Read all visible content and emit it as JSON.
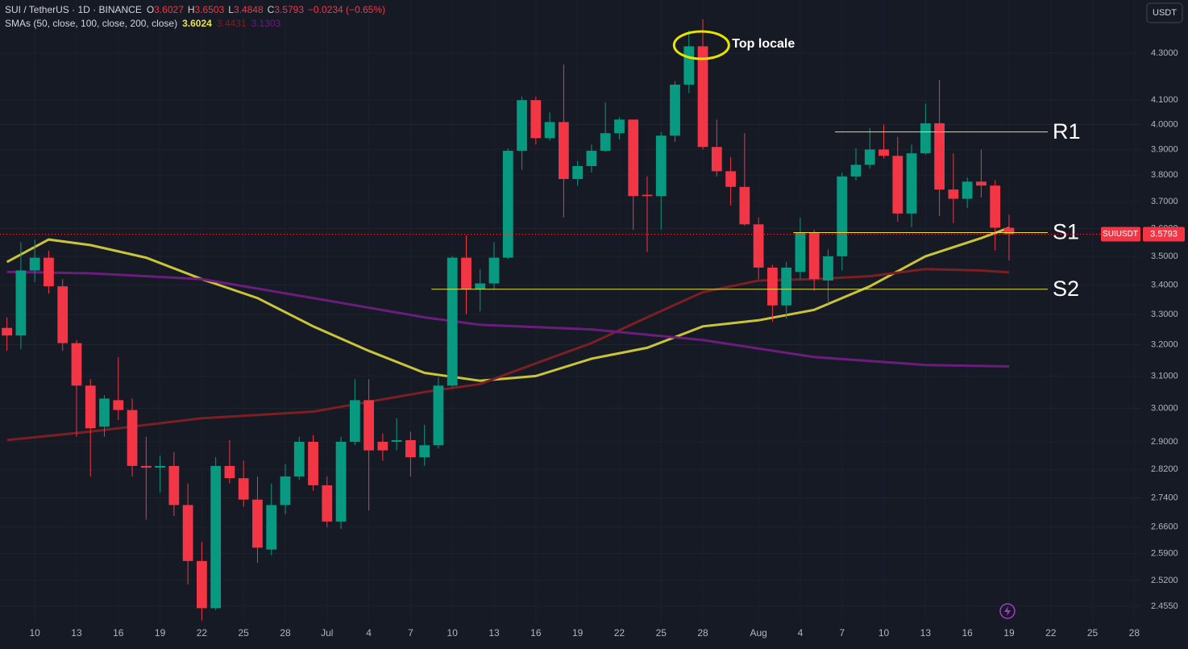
{
  "header": {
    "symbol": "SUI / TetherUS · 1D · BINANCE",
    "ohlc_letters": [
      "O",
      "H",
      "L",
      "C"
    ],
    "change_text": "−0.0234 (−0.65%)",
    "currency": "USDT",
    "price_tag": "SUIUSDT"
  },
  "chart_data": {
    "type": "candlestick",
    "log": true,
    "grid": true,
    "up_color": "#089981",
    "down_color": "#f23645",
    "categories": [
      "Jun 8",
      "Jun 9",
      "Jun 10",
      "Jun 11",
      "Jun 12",
      "Jun 13",
      "Jun 14",
      "Jun 15",
      "Jun 16",
      "Jun 17",
      "Jun 18",
      "Jun 19",
      "Jun 20",
      "Jun 21",
      "Jun 22",
      "Jun 23",
      "Jun 24",
      "Jun 25",
      "Jun 26",
      "Jun 27",
      "Jun 28",
      "Jun 29",
      "Jun 30",
      "Jul 1",
      "Jul 2",
      "Jul 3",
      "Jul 4",
      "Jul 5",
      "Jul 6",
      "Jul 7",
      "Jul 8",
      "Jul 9",
      "Jul 10",
      "Jul 11",
      "Jul 12",
      "Jul 13",
      "Jul 14",
      "Jul 15",
      "Jul 16",
      "Jul 17",
      "Jul 18",
      "Jul 19",
      "Jul 20",
      "Jul 21",
      "Jul 22",
      "Jul 23",
      "Jul 24",
      "Jul 25",
      "Jul 26",
      "Jul 27",
      "Jul 28",
      "Jul 29",
      "Jul 30",
      "Jul 31",
      "Aug 1",
      "Aug 2",
      "Aug 3",
      "Aug 4",
      "Aug 5",
      "Aug 6",
      "Aug 7",
      "Aug 8",
      "Aug 9",
      "Aug 10",
      "Aug 11",
      "Aug 12",
      "Aug 13",
      "Aug 14",
      "Aug 15",
      "Aug 16",
      "Aug 17",
      "Aug 18",
      "Aug 19",
      "Aug 20",
      "Aug 21",
      "Aug 22",
      "Aug 23",
      "Aug 24",
      "Aug 25",
      "Aug 26",
      "Aug 27",
      "Aug 28"
    ],
    "open": [
      3.255,
      3.23,
      3.45,
      3.495,
      3.395,
      3.205,
      3.07,
      2.945,
      3.025,
      2.995,
      2.83,
      2.825,
      2.83,
      2.72,
      2.57,
      2.45,
      2.83,
      2.795,
      2.735,
      2.6,
      2.72,
      2.8,
      2.9,
      2.775,
      2.675,
      2.9,
      3.025,
      2.9,
      2.9,
      2.905,
      2.855,
      2.89,
      3.07,
      3.495,
      3.385,
      3.405,
      3.495,
      3.895,
      4.1,
      3.945,
      4.01,
      3.785,
      3.835,
      3.895,
      3.965,
      4.02,
      3.725,
      3.72,
      3.955,
      4.165,
      4.33,
      3.91,
      3.815,
      3.755,
      3.615,
      3.46,
      3.33,
      3.445,
      3.585,
      3.415,
      3.5,
      3.795,
      3.84,
      3.9,
      3.875,
      3.655,
      3.885,
      4.005,
      3.745,
      3.71,
      3.775,
      3.76,
      3.6027,
      null,
      null,
      null,
      null,
      null,
      null,
      null,
      null,
      null
    ],
    "high": [
      3.29,
      3.55,
      3.56,
      3.52,
      3.42,
      3.215,
      3.09,
      3.04,
      3.16,
      3.03,
      2.915,
      2.86,
      2.87,
      2.78,
      2.62,
      2.855,
      2.905,
      2.845,
      2.8,
      2.78,
      2.835,
      2.915,
      2.92,
      2.8,
      2.915,
      3.09,
      3.09,
      2.925,
      2.97,
      2.93,
      2.95,
      3.095,
      3.5,
      3.575,
      3.455,
      3.55,
      3.905,
      4.115,
      4.115,
      4.05,
      4.25,
      3.855,
      3.92,
      4.09,
      4.03,
      4.02,
      3.795,
      3.97,
      4.18,
      4.4,
      4.45,
      4.02,
      3.87,
      3.965,
      3.64,
      3.47,
      3.48,
      3.64,
      3.595,
      3.525,
      3.81,
      3.905,
      3.985,
      4.0,
      3.95,
      3.92,
      4.085,
      4.185,
      3.885,
      3.79,
      3.9,
      3.78,
      3.6503,
      null,
      null,
      null,
      null,
      null,
      null,
      null,
      null,
      null
    ],
    "low": [
      3.18,
      3.185,
      3.41,
      3.37,
      3.18,
      2.915,
      2.8,
      2.915,
      2.965,
      2.8,
      2.68,
      2.755,
      2.69,
      2.51,
      2.42,
      2.445,
      2.78,
      2.715,
      2.565,
      2.585,
      2.695,
      2.79,
      2.76,
      2.66,
      2.655,
      2.89,
      2.705,
      2.845,
      2.875,
      2.8,
      2.83,
      2.88,
      3.065,
      3.3,
      3.31,
      3.385,
      3.49,
      3.82,
      3.92,
      3.935,
      3.64,
      3.76,
      3.81,
      3.89,
      3.94,
      3.595,
      3.515,
      3.595,
      3.93,
      4.13,
      3.9,
      3.795,
      3.685,
      3.61,
      3.42,
      3.275,
      3.285,
      3.42,
      3.38,
      3.335,
      3.45,
      3.78,
      3.825,
      3.865,
      3.625,
      3.605,
      3.88,
      3.645,
      3.62,
      3.675,
      3.715,
      3.52,
      3.4848,
      null,
      null,
      null,
      null,
      null,
      null,
      null,
      null,
      null
    ],
    "close": [
      3.23,
      3.45,
      3.495,
      3.395,
      3.205,
      3.07,
      2.94,
      3.03,
      2.995,
      2.83,
      2.825,
      2.83,
      2.72,
      2.57,
      2.45,
      2.83,
      2.795,
      2.735,
      2.605,
      2.72,
      2.8,
      2.9,
      2.775,
      2.675,
      2.9,
      3.025,
      2.875,
      2.875,
      2.905,
      2.855,
      2.89,
      3.07,
      3.495,
      3.385,
      3.405,
      3.495,
      3.895,
      4.1,
      3.945,
      4.01,
      3.785,
      3.835,
      3.895,
      3.965,
      4.02,
      3.72,
      3.72,
      3.955,
      4.165,
      4.33,
      3.91,
      3.815,
      3.755,
      3.615,
      3.46,
      3.33,
      3.46,
      3.585,
      3.42,
      3.5,
      3.795,
      3.84,
      3.9,
      3.875,
      3.655,
      3.885,
      4.005,
      3.745,
      3.71,
      3.775,
      3.76,
      3.6027,
      3.5793,
      null,
      null,
      null,
      null,
      null,
      null,
      null,
      null,
      null
    ],
    "indicator_title": "SMAs (50, close, 100, close, 200, close)",
    "series": [
      {
        "color": "#c9c43a",
        "x": [
          "Jun 8",
          "Jun 11",
          "Jun 14",
          "Jun 18",
          "Jun 22",
          "Jun 26",
          "Jun 30",
          "Jul 4",
          "Jul 8",
          "Jul 12",
          "Jul 16",
          "Jul 20",
          "Jul 24",
          "Jul 28",
          "Aug 1",
          "Aug 5",
          "Aug 9",
          "Aug 13",
          "Aug 17",
          "Aug 19"
        ],
        "values": [
          3.48,
          3.56,
          3.54,
          3.495,
          3.42,
          3.355,
          3.26,
          3.18,
          3.11,
          3.085,
          3.1,
          3.155,
          3.19,
          3.26,
          3.28,
          3.315,
          3.395,
          3.5,
          3.565,
          3.6024
        ]
      },
      {
        "color": "#7c1f22",
        "x": [
          "Jun 8",
          "Jun 14",
          "Jun 22",
          "Jun 30",
          "Jul 8",
          "Jul 12",
          "Jul 16",
          "Jul 20",
          "Jul 24",
          "Jul 28",
          "Aug 1",
          "Aug 5",
          "Aug 9",
          "Aug 13",
          "Aug 17",
          "Aug 19"
        ],
        "values": [
          2.905,
          2.93,
          2.97,
          2.99,
          3.05,
          3.075,
          3.14,
          3.205,
          3.29,
          3.375,
          3.415,
          3.42,
          3.43,
          3.455,
          3.45,
          3.4431
        ]
      },
      {
        "color": "#6b1d7c",
        "x": [
          "Jun 8",
          "Jun 14",
          "Jun 22",
          "Jun 30",
          "Jul 8",
          "Jul 12",
          "Jul 20",
          "Jul 28",
          "Aug 5",
          "Aug 13",
          "Aug 19"
        ],
        "values": [
          3.445,
          3.44,
          3.42,
          3.355,
          3.29,
          3.265,
          3.25,
          3.215,
          3.16,
          3.135,
          3.1303
        ]
      }
    ],
    "levels": [
      {
        "label": "R1",
        "value": 3.97,
        "from": "Aug 7"
      },
      {
        "label": "S1",
        "value": 3.585,
        "from": "Aug 4"
      },
      {
        "label": "S2",
        "value": 3.385,
        "from": "Jul 9"
      }
    ],
    "level_color": "#e6e34a",
    "annotation": "Top locale",
    "ylim": [
      2.415,
      4.538
    ],
    "yticks": [
      {
        "value": 4.3,
        "label": "4.3000"
      },
      {
        "value": 4.1,
        "label": "4.1000"
      },
      {
        "value": 4.0,
        "label": "4.0000"
      },
      {
        "value": 3.9,
        "label": "3.9000"
      },
      {
        "value": 3.8,
        "label": "3.8000"
      },
      {
        "value": 3.7,
        "label": "3.7000"
      },
      {
        "value": 3.6,
        "label": "3.6000"
      },
      {
        "value": 3.5,
        "label": "3.5000"
      },
      {
        "value": 3.4,
        "label": "3.4000"
      },
      {
        "value": 3.3,
        "label": "3.3000"
      },
      {
        "value": 3.2,
        "label": "3.2000"
      },
      {
        "value": 3.1,
        "label": "3.1000"
      },
      {
        "value": 3.0,
        "label": "3.0000"
      },
      {
        "value": 2.9,
        "label": "2.9000"
      },
      {
        "value": 2.82,
        "label": "2.8200"
      },
      {
        "value": 2.74,
        "label": "2.7400"
      },
      {
        "value": 2.66,
        "label": "2.6600"
      },
      {
        "value": 2.59,
        "label": "2.5900"
      },
      {
        "value": 2.52,
        "label": "2.5200"
      },
      {
        "value": 2.455,
        "label": "2.4550"
      }
    ],
    "xticks": [
      {
        "value": "Jun 10",
        "label": "10"
      },
      {
        "value": "Jun 13",
        "label": "13"
      },
      {
        "value": "Jun 16",
        "label": "16"
      },
      {
        "value": "Jun 19",
        "label": "19"
      },
      {
        "value": "Jun 22",
        "label": "22"
      },
      {
        "value": "Jun 25",
        "label": "25"
      },
      {
        "value": "Jun 28",
        "label": "28"
      },
      {
        "value": "Jul 1",
        "label": "Jul"
      },
      {
        "value": "Jul 4",
        "label": "4"
      },
      {
        "value": "Jul 7",
        "label": "7"
      },
      {
        "value": "Jul 10",
        "label": "10"
      },
      {
        "value": "Jul 13",
        "label": "13"
      },
      {
        "value": "Jul 16",
        "label": "16"
      },
      {
        "value": "Jul 19",
        "label": "19"
      },
      {
        "value": "Jul 22",
        "label": "22"
      },
      {
        "value": "Jul 25",
        "label": "25"
      },
      {
        "value": "Jul 28",
        "label": "28"
      },
      {
        "value": "Aug 1",
        "label": "Aug"
      },
      {
        "value": "Aug 4",
        "label": "4"
      },
      {
        "value": "Aug 7",
        "label": "7"
      },
      {
        "value": "Aug 10",
        "label": "10"
      },
      {
        "value": "Aug 13",
        "label": "13"
      },
      {
        "value": "Aug 16",
        "label": "16"
      },
      {
        "value": "Aug 19",
        "label": "19"
      },
      {
        "value": "Aug 22",
        "label": "22"
      },
      {
        "value": "Aug 25",
        "label": "25"
      },
      {
        "value": "Aug 28",
        "label": "28"
      }
    ]
  }
}
